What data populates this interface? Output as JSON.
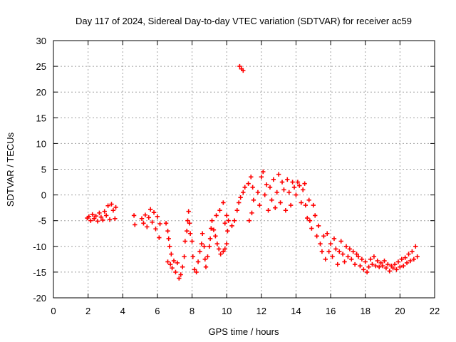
{
  "chart_data": {
    "type": "scatter",
    "title": "Day 117 of 2024, Sidereal Day-to-day VTEC variation (SDTVAR) for receiver ac59",
    "xlabel": "GPS time / hours",
    "ylabel": "SDTVAR / TECUs",
    "xlim": [
      0,
      22
    ],
    "ylim": [
      -20,
      30
    ],
    "xticks": [
      "0",
      "2",
      "4",
      "6",
      "8",
      "10",
      "12",
      "14",
      "16",
      "18",
      "20",
      "22"
    ],
    "yticks": [
      "30",
      "25",
      "20",
      "15",
      "10",
      "5",
      "0",
      "-5",
      "-10",
      "-15",
      "-20"
    ],
    "grid": true,
    "marker": "plus",
    "series_color": "#ff0000",
    "series": [
      {
        "name": "SDTVAR",
        "points": [
          [
            1.95,
            -4.5
          ],
          [
            2.05,
            -4.2
          ],
          [
            2.15,
            -5.0
          ],
          [
            2.25,
            -3.8
          ],
          [
            2.35,
            -4.6
          ],
          [
            2.45,
            -4.1
          ],
          [
            2.55,
            -5.1
          ],
          [
            2.65,
            -3.5
          ],
          [
            2.75,
            -4.3
          ],
          [
            2.85,
            -4.9
          ],
          [
            2.95,
            -3.2
          ],
          [
            3.05,
            -4.0
          ],
          [
            3.15,
            -2.1
          ],
          [
            3.25,
            -4.8
          ],
          [
            3.35,
            -1.8
          ],
          [
            3.45,
            -3.0
          ],
          [
            3.55,
            -4.6
          ],
          [
            3.6,
            -2.4
          ],
          [
            4.65,
            -4.0
          ],
          [
            4.7,
            -5.8
          ],
          [
            5.1,
            -4.6
          ],
          [
            5.2,
            -5.5
          ],
          [
            5.3,
            -3.9
          ],
          [
            5.4,
            -6.2
          ],
          [
            5.5,
            -4.4
          ],
          [
            5.6,
            -2.8
          ],
          [
            5.7,
            -5.3
          ],
          [
            5.8,
            -3.4
          ],
          [
            5.9,
            -6.6
          ],
          [
            6.0,
            -4.2
          ],
          [
            6.1,
            -8.3
          ],
          [
            6.15,
            -5.6
          ],
          [
            6.5,
            -5.5
          ],
          [
            6.6,
            -7.0
          ],
          [
            6.65,
            -8.5
          ],
          [
            6.7,
            -10.0
          ],
          [
            6.6,
            -13.0
          ],
          [
            6.75,
            -13.5
          ],
          [
            6.8,
            -11.5
          ],
          [
            6.85,
            -14.2
          ],
          [
            6.95,
            -12.8
          ],
          [
            7.05,
            -15.0
          ],
          [
            7.15,
            -13.2
          ],
          [
            7.25,
            -16.2
          ],
          [
            7.35,
            -15.5
          ],
          [
            7.45,
            -14.0
          ],
          [
            7.55,
            -12.0
          ],
          [
            7.6,
            -9.0
          ],
          [
            7.7,
            -7.0
          ],
          [
            7.75,
            -5.0
          ],
          [
            7.8,
            -3.2
          ],
          [
            7.85,
            -5.5
          ],
          [
            7.9,
            -7.5
          ],
          [
            8.0,
            -9.0
          ],
          [
            8.05,
            -12.0
          ],
          [
            8.15,
            -14.5
          ],
          [
            8.25,
            -15.0
          ],
          [
            8.35,
            -13.0
          ],
          [
            8.45,
            -11.0
          ],
          [
            8.55,
            -9.5
          ],
          [
            8.6,
            -7.5
          ],
          [
            8.7,
            -10.0
          ],
          [
            8.75,
            -12.5
          ],
          [
            8.8,
            -14.0
          ],
          [
            8.9,
            -12.0
          ],
          [
            9.0,
            -10.0
          ],
          [
            9.05,
            -8.5
          ],
          [
            9.1,
            -6.5
          ],
          [
            9.15,
            -5.0
          ],
          [
            9.25,
            -6.8
          ],
          [
            9.35,
            -8.0
          ],
          [
            9.45,
            -9.5
          ],
          [
            9.55,
            -10.5
          ],
          [
            9.65,
            -11.5
          ],
          [
            9.8,
            -11.0
          ],
          [
            9.9,
            -10.5
          ],
          [
            10.0,
            -9.5
          ],
          [
            10.05,
            -7.0
          ],
          [
            9.9,
            -5.5
          ],
          [
            9.4,
            -4.0
          ],
          [
            9.6,
            -3.0
          ],
          [
            9.8,
            -1.5
          ],
          [
            10.0,
            -4.0
          ],
          [
            10.1,
            -5.0
          ],
          [
            10.3,
            -6.0
          ],
          [
            10.45,
            -5.0
          ],
          [
            10.6,
            -3.0
          ],
          [
            10.7,
            -1.5
          ],
          [
            10.8,
            -0.5
          ],
          [
            10.95,
            0.5
          ],
          [
            11.05,
            1.5
          ],
          [
            11.25,
            2.2
          ],
          [
            11.4,
            3.5
          ],
          [
            11.5,
            1.5
          ],
          [
            11.55,
            -1.0
          ],
          [
            11.45,
            -3.5
          ],
          [
            11.3,
            -5.0
          ],
          [
            10.75,
            25.0
          ],
          [
            10.85,
            24.5
          ],
          [
            10.95,
            24.2
          ],
          [
            11.8,
            0.5
          ],
          [
            11.9,
            -2.0
          ],
          [
            12.0,
            3.5
          ],
          [
            12.1,
            4.5
          ],
          [
            12.2,
            0.0
          ],
          [
            12.3,
            2.0
          ],
          [
            12.4,
            -3.0
          ],
          [
            12.5,
            1.5
          ],
          [
            12.6,
            -1.0
          ],
          [
            12.7,
            3.0
          ],
          [
            12.8,
            -2.5
          ],
          [
            12.9,
            0.5
          ],
          [
            13.0,
            4.0
          ],
          [
            13.1,
            -1.5
          ],
          [
            13.2,
            2.5
          ],
          [
            13.3,
            1.0
          ],
          [
            13.4,
            -3.0
          ],
          [
            13.5,
            3.0
          ],
          [
            13.6,
            0.5
          ],
          [
            13.7,
            -2.0
          ],
          [
            13.8,
            2.5
          ],
          [
            13.9,
            1.5
          ],
          [
            14.0,
            0.0
          ],
          [
            14.1,
            2.5
          ],
          [
            14.2,
            1.8
          ],
          [
            14.3,
            -1.5
          ],
          [
            14.4,
            1.0
          ],
          [
            14.5,
            2.2
          ],
          [
            14.55,
            -2.0
          ],
          [
            14.65,
            -4.5
          ],
          [
            14.75,
            -1.0
          ],
          [
            14.8,
            -5.0
          ],
          [
            14.9,
            -6.5
          ],
          [
            15.0,
            -2.0
          ],
          [
            15.1,
            -4.0
          ],
          [
            15.2,
            -8.0
          ],
          [
            15.3,
            -6.0
          ],
          [
            15.4,
            -9.5
          ],
          [
            15.5,
            -11.0
          ],
          [
            15.6,
            -8.0
          ],
          [
            15.7,
            -12.5
          ],
          [
            15.8,
            -7.5
          ],
          [
            15.9,
            -11.0
          ],
          [
            16.0,
            -9.5
          ],
          [
            16.1,
            -12.0
          ],
          [
            16.2,
            -8.5
          ],
          [
            16.3,
            -10.5
          ],
          [
            16.4,
            -13.5
          ],
          [
            16.5,
            -11.0
          ],
          [
            16.6,
            -9.0
          ],
          [
            16.7,
            -11.5
          ],
          [
            16.8,
            -13.0
          ],
          [
            16.9,
            -10.0
          ],
          [
            17.0,
            -12.0
          ],
          [
            17.1,
            -10.5
          ],
          [
            17.2,
            -12.5
          ],
          [
            17.3,
            -11.0
          ],
          [
            17.4,
            -13.5
          ],
          [
            17.5,
            -11.5
          ],
          [
            17.6,
            -12.0
          ],
          [
            17.7,
            -13.8
          ],
          [
            17.8,
            -12.5
          ],
          [
            17.9,
            -14.5
          ],
          [
            18.0,
            -13.0
          ],
          [
            18.1,
            -15.0
          ],
          [
            18.2,
            -14.0
          ],
          [
            18.3,
            -12.5
          ],
          [
            18.4,
            -13.5
          ],
          [
            18.5,
            -12.0
          ],
          [
            18.6,
            -13.8
          ],
          [
            18.7,
            -12.8
          ],
          [
            18.8,
            -14.0
          ],
          [
            18.9,
            -13.2
          ],
          [
            19.0,
            -13.8
          ],
          [
            19.1,
            -12.8
          ],
          [
            19.2,
            -14.2
          ],
          [
            19.3,
            -13.5
          ],
          [
            19.4,
            -14.8
          ],
          [
            19.5,
            -13.8
          ],
          [
            19.6,
            -14.2
          ],
          [
            19.7,
            -13.5
          ],
          [
            19.8,
            -14.5
          ],
          [
            19.9,
            -13.0
          ],
          [
            20.0,
            -14.0
          ],
          [
            20.1,
            -12.5
          ],
          [
            20.2,
            -13.8
          ],
          [
            20.3,
            -12.2
          ],
          [
            20.4,
            -13.2
          ],
          [
            20.5,
            -11.5
          ],
          [
            20.6,
            -12.8
          ],
          [
            20.7,
            -11.0
          ],
          [
            20.8,
            -12.5
          ],
          [
            20.9,
            -10.0
          ],
          [
            21.0,
            -12.0
          ]
        ]
      }
    ]
  }
}
